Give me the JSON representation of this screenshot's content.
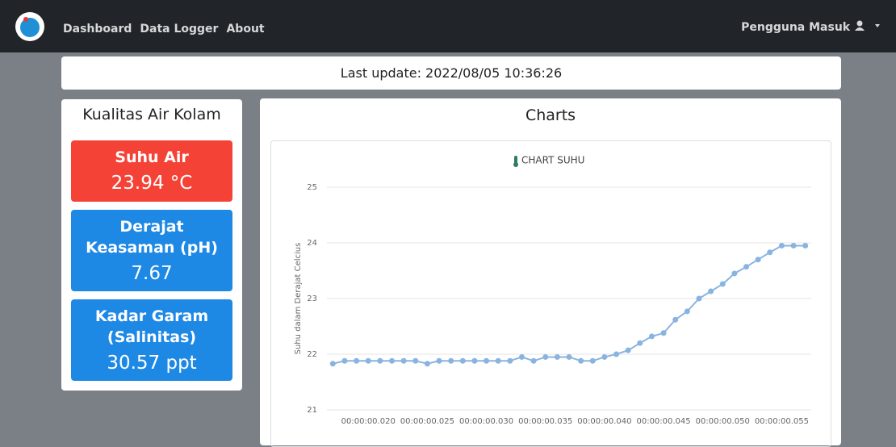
{
  "navbar": {
    "links": [
      "Dashboard",
      "Data Logger",
      "About"
    ],
    "user": "Pengguna Masuk"
  },
  "last_update": "Last update: 2022/08/05 10:36:26",
  "left_panel": {
    "title": "Kualitas Air Kolam",
    "tiles": [
      {
        "label": "Suhu Air",
        "value": "23.94 °C",
        "color": "#f44336"
      },
      {
        "label": "Derajat Keasaman (pH)",
        "value": "7.67",
        "color": "#1e88e5"
      },
      {
        "label": "Kadar Garam (Salinitas)",
        "value": "30.57 ppt",
        "color": "#1e88e5"
      }
    ]
  },
  "chart_panel": {
    "title": "Charts"
  },
  "chart_data": {
    "type": "line",
    "title": "CHART SUHU",
    "y_label": "Suhu dalam Derajat Celcius",
    "categories": [
      null,
      null,
      null,
      "00:00:00.020",
      null,
      null,
      null,
      null,
      "00:00:00.025",
      null,
      null,
      null,
      null,
      "00:00:00.030",
      null,
      null,
      null,
      null,
      "00:00:00.035",
      null,
      null,
      null,
      null,
      "00:00:00.040",
      null,
      null,
      null,
      null,
      "00:00:00.045",
      null,
      null,
      null,
      null,
      "00:00:00.050",
      null,
      null,
      null,
      null,
      "00:00:00.055",
      null,
      null
    ],
    "values": [
      21.83,
      21.88,
      21.88,
      21.88,
      21.88,
      21.88,
      21.88,
      21.88,
      21.83,
      21.88,
      21.88,
      21.88,
      21.88,
      21.88,
      21.88,
      21.88,
      21.95,
      21.88,
      21.95,
      21.95,
      21.95,
      21.88,
      21.88,
      21.95,
      22.0,
      22.07,
      22.2,
      22.32,
      22.38,
      22.62,
      22.77,
      23.0,
      23.13,
      23.26,
      23.45,
      23.57,
      23.7,
      23.83,
      23.95,
      23.95,
      23.95
    ],
    "color": "#8ab4e0",
    "ylim": [
      21,
      25
    ],
    "yticks": [
      21,
      22,
      23,
      24,
      25
    ],
    "grid": true
  }
}
